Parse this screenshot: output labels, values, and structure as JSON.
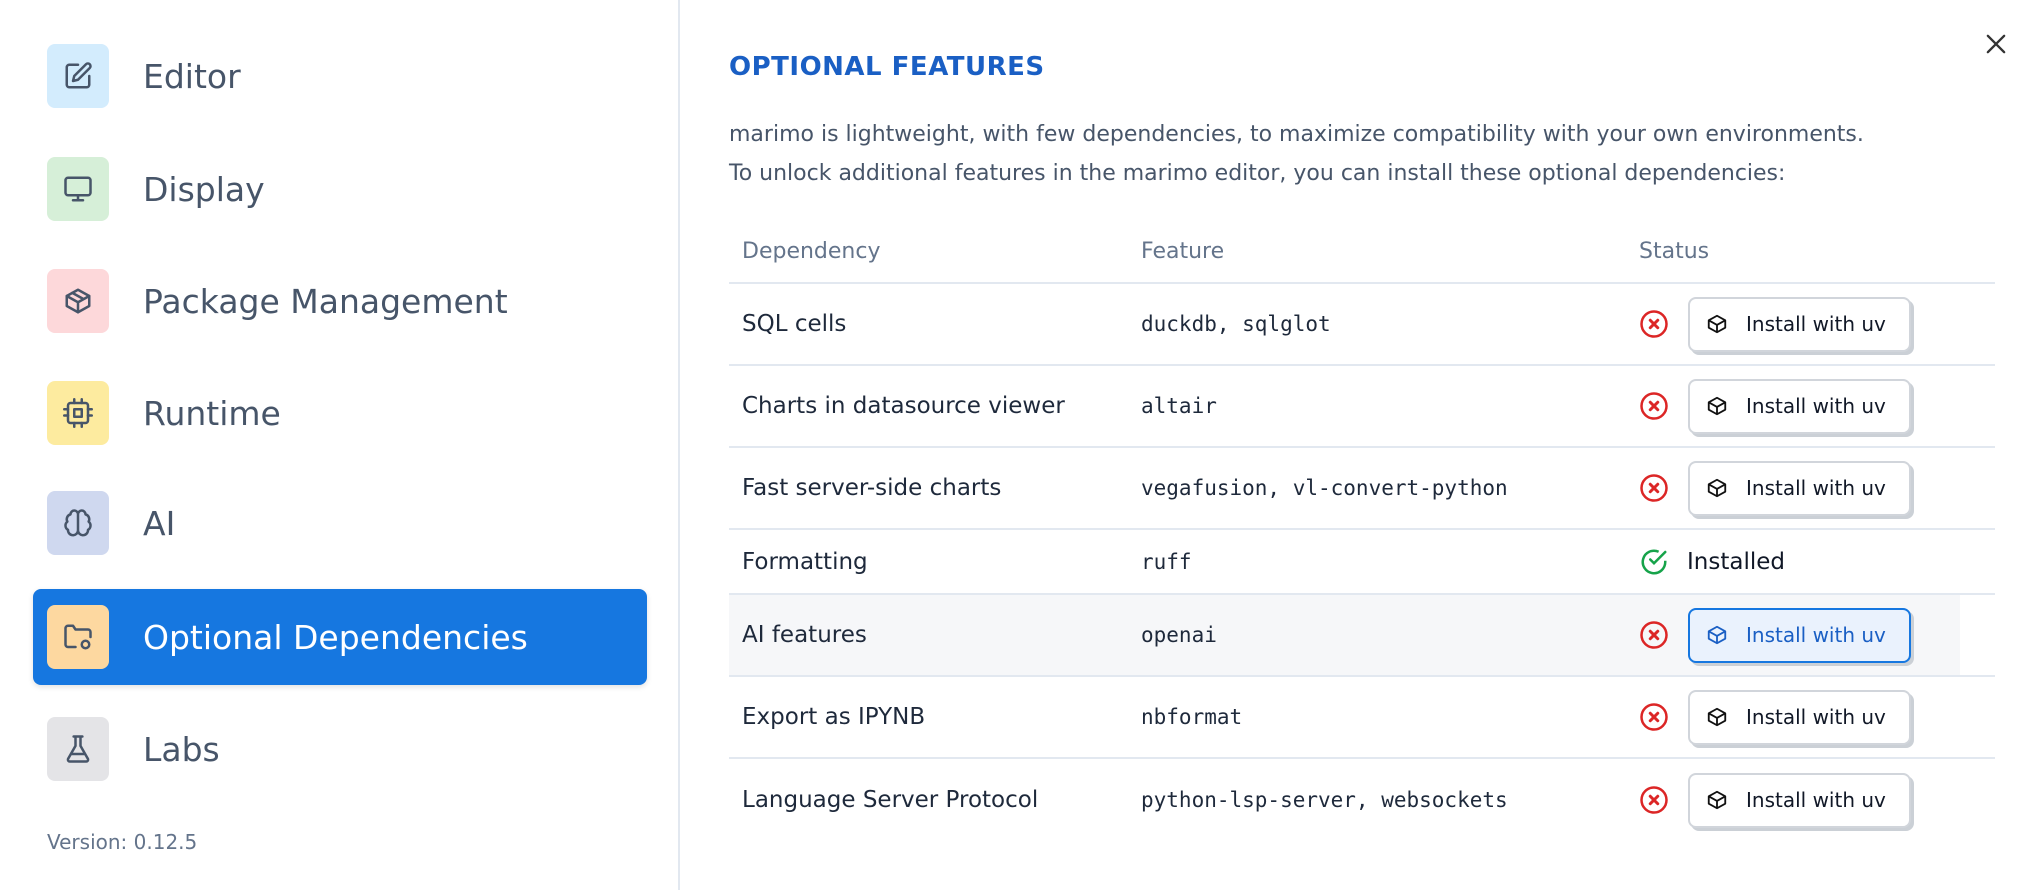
{
  "sidebar": {
    "items": [
      {
        "label": "Editor",
        "icon": "edit-icon",
        "color": "#d3ecfd"
      },
      {
        "label": "Display",
        "icon": "monitor-icon",
        "color": "#d6efd8"
      },
      {
        "label": "Package Management",
        "icon": "package-icon",
        "color": "#fdd8da"
      },
      {
        "label": "Runtime",
        "icon": "cpu-icon",
        "color": "#fdeb9f"
      },
      {
        "label": "AI",
        "icon": "brain-icon",
        "color": "#cfd8ef"
      },
      {
        "label": "Optional Dependencies",
        "icon": "folder-cog-icon",
        "color": "#fdd8a0",
        "active": true
      },
      {
        "label": "Labs",
        "icon": "flask-icon",
        "color": "#e4e4e7"
      }
    ],
    "version": "Version: 0.12.5"
  },
  "main": {
    "title": "OPTIONAL FEATURES",
    "description": [
      "marimo is lightweight, with few dependencies, to maximize compatibility with your own environments.",
      "To unlock additional features in the marimo editor, you can install these optional dependencies:"
    ],
    "columns": [
      "Dependency",
      "Feature",
      "Status"
    ],
    "install_label": "Install with uv",
    "installed_label": "Installed",
    "rows": [
      {
        "dependency": "SQL cells",
        "feature": "duckdb, sqlglot",
        "status": "missing"
      },
      {
        "dependency": "Charts in datasource viewer",
        "feature": "altair",
        "status": "missing"
      },
      {
        "dependency": "Fast server-side charts",
        "feature": "vegafusion, vl-convert-python",
        "status": "missing"
      },
      {
        "dependency": "Formatting",
        "feature": "ruff",
        "status": "installed"
      },
      {
        "dependency": "AI features",
        "feature": "openai",
        "status": "missing",
        "hovered": true
      },
      {
        "dependency": "Export as IPYNB",
        "feature": "nbformat",
        "status": "missing"
      },
      {
        "dependency": "Language Server Protocol",
        "feature": "python-lsp-server, websockets",
        "status": "missing"
      }
    ]
  },
  "colors": {
    "accent": "#1677e0",
    "error": "#dc2626",
    "success": "#16a34a"
  }
}
